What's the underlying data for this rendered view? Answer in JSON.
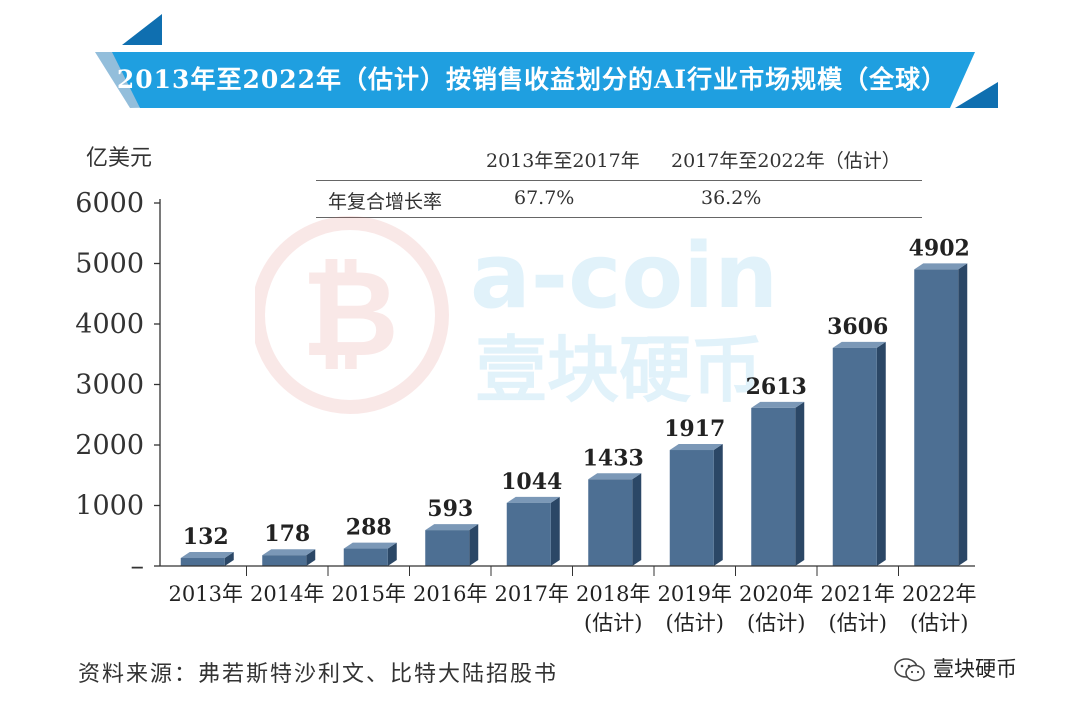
{
  "colors": {
    "banner": "#1f9fe0",
    "banner_dark": "#0f6fb0",
    "bar_front": "#4d6f93",
    "bar_side": "#2b4766",
    "bar_top": "#7b98b7",
    "watermark_red": "#d9534f",
    "watermark_blue": "#1f9fe0"
  },
  "title": "2013年至2022年（估计）按销售收益划分的AI行业市场规模（全球）",
  "unit_label": "亿美元",
  "cagr_table": {
    "headers": [
      "",
      "2013年至2017年",
      "2017年至2022年（估计）"
    ],
    "row_label": "年复合增长率",
    "values": [
      "67.7%",
      "36.2%"
    ]
  },
  "watermark": {
    "text": "a-coin",
    "subtext": "壹块硬币"
  },
  "chart_data": {
    "type": "bar",
    "categories": [
      "2013年",
      "2014年",
      "2015年",
      "2016年",
      "2017年",
      "2018年",
      "2019年",
      "2020年",
      "2021年",
      "2022年"
    ],
    "category_notes": [
      "",
      "",
      "",
      "",
      "",
      "(估计)",
      "(估计)",
      "(估计)",
      "(估计)",
      "(估计)"
    ],
    "values": [
      132,
      178,
      288,
      593,
      1044,
      1433,
      1917,
      2613,
      3606,
      4902
    ],
    "data_labels": [
      "132",
      "178",
      "288",
      "593",
      "1044",
      "1433",
      "1917",
      "2613",
      "3606",
      "4902"
    ],
    "yticks": [
      0,
      1000,
      2000,
      3000,
      4000,
      5000,
      6000
    ],
    "ytick_labels": [
      "–",
      "1000",
      "2000",
      "3000",
      "4000",
      "5000",
      "6000"
    ],
    "ylim": [
      0,
      6000
    ],
    "ylabel": "亿美元",
    "xlabel": "",
    "grid": false,
    "style": "3d-column"
  },
  "source": "资料来源：弗若斯特沙利文、比特大陆招股书",
  "brand": {
    "icon": "wechat-icon",
    "name": "壹块硬币"
  }
}
